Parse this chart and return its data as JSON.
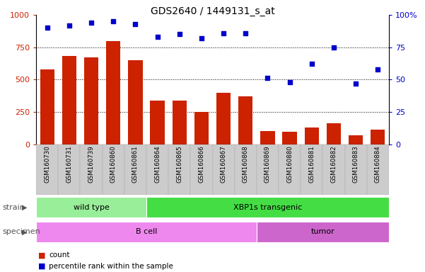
{
  "title": "GDS2640 / 1449131_s_at",
  "samples": [
    "GSM160730",
    "GSM160731",
    "GSM160739",
    "GSM160860",
    "GSM160861",
    "GSM160864",
    "GSM160865",
    "GSM160866",
    "GSM160867",
    "GSM160868",
    "GSM160869",
    "GSM160880",
    "GSM160881",
    "GSM160882",
    "GSM160883",
    "GSM160884"
  ],
  "counts": [
    580,
    680,
    670,
    800,
    650,
    340,
    340,
    250,
    400,
    370,
    100,
    95,
    130,
    160,
    70,
    110
  ],
  "percentiles": [
    90,
    92,
    94,
    95,
    93,
    83,
    85,
    82,
    86,
    86,
    51,
    48,
    62,
    75,
    47,
    58
  ],
  "bar_color": "#cc2200",
  "dot_color": "#0000cc",
  "ylim_left": [
    0,
    1000
  ],
  "ylim_right": [
    0,
    100
  ],
  "yticks_left": [
    0,
    250,
    500,
    750,
    1000
  ],
  "yticks_right": [
    0,
    25,
    50,
    75,
    100
  ],
  "strain_groups": [
    {
      "label": "wild type",
      "start": 0,
      "end": 5,
      "color": "#99ee99"
    },
    {
      "label": "XBP1s transgenic",
      "start": 5,
      "end": 16,
      "color": "#44dd44"
    }
  ],
  "specimen_groups": [
    {
      "label": "B cell",
      "start": 0,
      "end": 10,
      "color": "#ee88ee"
    },
    {
      "label": "tumor",
      "start": 10,
      "end": 16,
      "color": "#cc66cc"
    }
  ],
  "strain_label": "strain",
  "specimen_label": "specimen",
  "legend_count_label": "count",
  "legend_pct_label": "percentile rank within the sample",
  "title_fontsize": 10,
  "axis_color_left": "#cc2200",
  "axis_color_right": "#0000cc",
  "tick_bg_color": "#cccccc",
  "tick_bg_edge": "#aaaaaa"
}
